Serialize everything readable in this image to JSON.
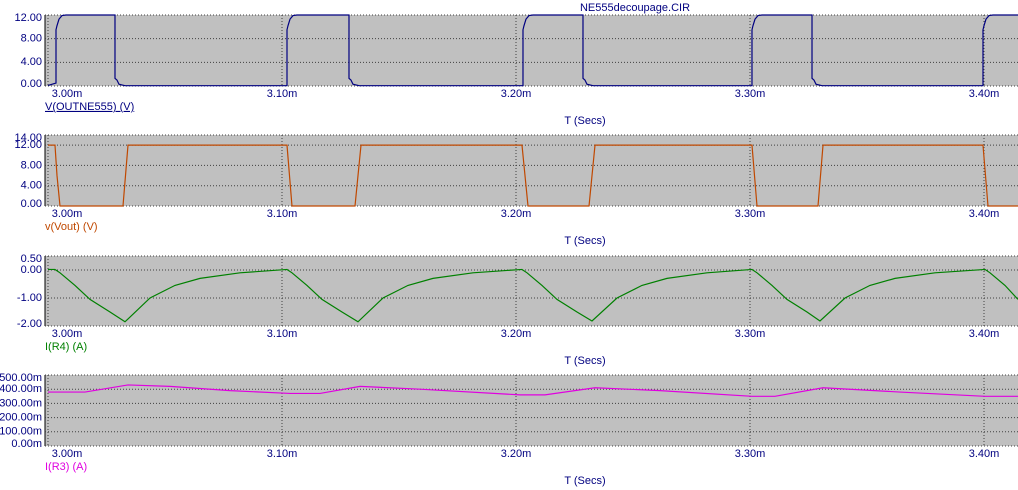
{
  "chart_data": [
    {
      "type": "line",
      "title": "NE555decoupage.CIR",
      "x_label": "T (Secs)",
      "x": [
        0.003,
        0.00300342,
        0.00300342,
        0.00300385,
        0.0030047,
        0.00300598,
        0.00300769,
        0.00302863,
        0.00302863,
        0.00302949,
        0.00303034,
        0.00303291,
        0.00310214,
        0.00310214,
        0.00310257,
        0.00310342,
        0.0031047,
        0.00310641,
        0.00312863,
        0.00312863,
        0.00312949,
        0.00313034,
        0.00313291,
        0.00320299,
        0.00320299,
        0.00320342,
        0.00320427,
        0.00320556,
        0.00320726,
        0.00322863,
        0.00322863,
        0.00322949,
        0.00323034,
        0.00323291,
        0.00330085,
        0.00330085,
        0.00330128,
        0.00330214,
        0.00330342,
        0.00330513,
        0.0033265,
        0.0033265,
        0.00332735,
        0.00332821,
        0.00333077,
        0.00339957,
        0.00339957,
        0.0034,
        0.00340085,
        0.00340214,
        0.00340385,
        0.00341453
      ],
      "series": [
        {
          "name": "V(OUTNE555) (V)",
          "color": "#000080",
          "values": [
            0.1,
            0.5,
            9.5,
            10.2,
            11.3,
            11.9,
            12,
            12,
            1.3,
            1.0,
            0.3,
            0.05,
            0.05,
            9.5,
            10.2,
            11.3,
            11.9,
            12,
            12,
            1.3,
            1.0,
            0.3,
            0.05,
            0.05,
            9.5,
            10.2,
            11.3,
            11.9,
            12,
            12,
            1.3,
            1.0,
            0.3,
            0.05,
            0.05,
            9.5,
            10.2,
            11.3,
            11.9,
            12,
            12,
            1.3,
            1.0,
            0.3,
            0.05,
            0.05,
            9.5,
            10.2,
            11.3,
            11.9,
            12,
            12
          ]
        }
      ],
      "xlim": [
        0.00299872,
        0.00341453
      ],
      "xticks": [
        {
          "value": 0.003,
          "label": "3.00m"
        },
        {
          "value": 0.0031,
          "label": "3.10m"
        },
        {
          "value": 0.0032,
          "label": "3.20m"
        },
        {
          "value": 0.0033,
          "label": "3.30m"
        },
        {
          "value": 0.0034,
          "label": "3.40m"
        }
      ],
      "ylim": [
        0,
        12
      ],
      "yticks": [
        {
          "value": 0,
          "label": "0.00"
        },
        {
          "value": 4,
          "label": "4.00"
        },
        {
          "value": 8,
          "label": "8.00"
        },
        {
          "value": 12,
          "label": "12.00"
        }
      ],
      "grid": true
    },
    {
      "type": "line",
      "x_label": "T (Secs)",
      "x": [
        0.003,
        0.00300299,
        0.00300385,
        0.00300513,
        0.00303205,
        0.00303419,
        0.00310214,
        0.00310427,
        0.0031312,
        0.00313376,
        0.00320256,
        0.00320513,
        0.0032312,
        0.00323376,
        0.00330085,
        0.00330299,
        0.00332906,
        0.0033312,
        0.00339957,
        0.00340171,
        0.00341453
      ],
      "series": [
        {
          "name": "v(Vout) (V)",
          "color": "#c04800",
          "values": [
            12,
            12,
            6,
            0,
            0,
            12,
            12,
            0,
            0,
            12,
            12,
            0,
            0,
            12,
            12,
            0,
            0,
            12,
            12,
            0,
            0
          ]
        }
      ],
      "xlim": [
        0.00299872,
        0.00341453
      ],
      "xticks": [
        {
          "value": 0.003,
          "label": "3.00m"
        },
        {
          "value": 0.0031,
          "label": "3.10m"
        },
        {
          "value": 0.0032,
          "label": "3.20m"
        },
        {
          "value": 0.0033,
          "label": "3.30m"
        },
        {
          "value": 0.0034,
          "label": "3.40m"
        }
      ],
      "ylim": [
        0,
        14
      ],
      "yticks": [
        {
          "value": 0,
          "label": "0.00"
        },
        {
          "value": 4,
          "label": "4.00"
        },
        {
          "value": 8,
          "label": "8.00"
        },
        {
          "value": 12,
          "label": "12.00"
        },
        {
          "value": 14,
          "label": "14.00"
        }
      ],
      "grid": true
    },
    {
      "type": "line",
      "x_label": "T (Secs)",
      "x": [
        0.003,
        0.00300299,
        0.00300513,
        0.00301154,
        0.00301795,
        0.0030265,
        0.00303291,
        0.00304359,
        0.00305427,
        0.00306496,
        0.00308205,
        0.00310214,
        0.00310427,
        0.00311068,
        0.00311709,
        0.00312564,
        0.00313248,
        0.00314316,
        0.00315385,
        0.00316453,
        0.00318162,
        0.00320256,
        0.0032047,
        0.00321111,
        0.00321752,
        0.00322607,
        0.00323248,
        0.00324316,
        0.00325385,
        0.00326453,
        0.00328162,
        0.00330085,
        0.00330299,
        0.0033094,
        0.00331581,
        0.00332436,
        0.00332991,
        0.0033406,
        0.00335128,
        0.00336197,
        0.00337906,
        0.00340043,
        0.00340256,
        0.00340897,
        0.00341453
      ],
      "series": [
        {
          "name": "I(R4) (A)",
          "color": "#008000",
          "values": [
            0.02,
            0.02,
            -0.1,
            -0.55,
            -1.05,
            -1.5,
            -1.85,
            -1.0,
            -0.55,
            -0.3,
            -0.1,
            0.02,
            -0.1,
            -0.55,
            -1.05,
            -1.5,
            -1.85,
            -1.0,
            -0.55,
            -0.3,
            -0.1,
            0.02,
            -0.1,
            -0.55,
            -1.05,
            -1.5,
            -1.82,
            -1.0,
            -0.55,
            -0.3,
            -0.1,
            0.02,
            -0.1,
            -0.55,
            -1.05,
            -1.5,
            -1.82,
            -1.0,
            -0.55,
            -0.3,
            -0.1,
            0.02,
            -0.1,
            -0.55,
            -1.05
          ]
        }
      ],
      "xlim": [
        0.00299872,
        0.00341453
      ],
      "xticks": [
        {
          "value": 0.003,
          "label": "3.00m"
        },
        {
          "value": 0.0031,
          "label": "3.10m"
        },
        {
          "value": 0.0032,
          "label": "3.20m"
        },
        {
          "value": 0.0033,
          "label": "3.30m"
        },
        {
          "value": 0.0034,
          "label": "3.40m"
        }
      ],
      "ylim": [
        -2,
        0.5
      ],
      "yticks": [
        {
          "value": -2,
          "label": "-2.00"
        },
        {
          "value": -1,
          "label": "-1.00"
        },
        {
          "value": 0,
          "label": "0.00"
        },
        {
          "value": 0.5,
          "label": "0.50"
        }
      ],
      "grid": true
    },
    {
      "type": "line",
      "x_label": "T (Secs)",
      "x": [
        0.003,
        0.00301581,
        0.00303419,
        0.00305214,
        0.00307778,
        0.00310342,
        0.00311624,
        0.00313333,
        0.00315897,
        0.00320171,
        0.00321239,
        0.00323376,
        0.00326154,
        0.00330085,
        0.00331068,
        0.0033312,
        0.0033641,
        0.00340043,
        0.00341453
      ],
      "series": [
        {
          "name": "I(R3) (A)",
          "color": "#e000e0",
          "values": [
            0.38,
            0.38,
            0.43,
            0.42,
            0.39,
            0.37,
            0.37,
            0.42,
            0.4,
            0.36,
            0.36,
            0.41,
            0.39,
            0.35,
            0.35,
            0.41,
            0.38,
            0.35,
            0.35
          ]
        }
      ],
      "xlim": [
        0.00299872,
        0.00341453
      ],
      "xticks": [
        {
          "value": 0.003,
          "label": "3.00m"
        },
        {
          "value": 0.0031,
          "label": "3.10m"
        },
        {
          "value": 0.0032,
          "label": "3.20m"
        },
        {
          "value": 0.0033,
          "label": "3.30m"
        },
        {
          "value": 0.0034,
          "label": "3.40m"
        }
      ],
      "ylim": [
        0,
        0.5
      ],
      "yticks": [
        {
          "value": 0,
          "label": "0.00m"
        },
        {
          "value": 0.1,
          "label": "100.00m"
        },
        {
          "value": 0.2,
          "label": "200.00m"
        },
        {
          "value": 0.3,
          "label": "300.00m"
        },
        {
          "value": 0.4,
          "label": "400.00m"
        },
        {
          "value": 0.5,
          "label": "500.00m"
        }
      ],
      "grid": true
    }
  ]
}
